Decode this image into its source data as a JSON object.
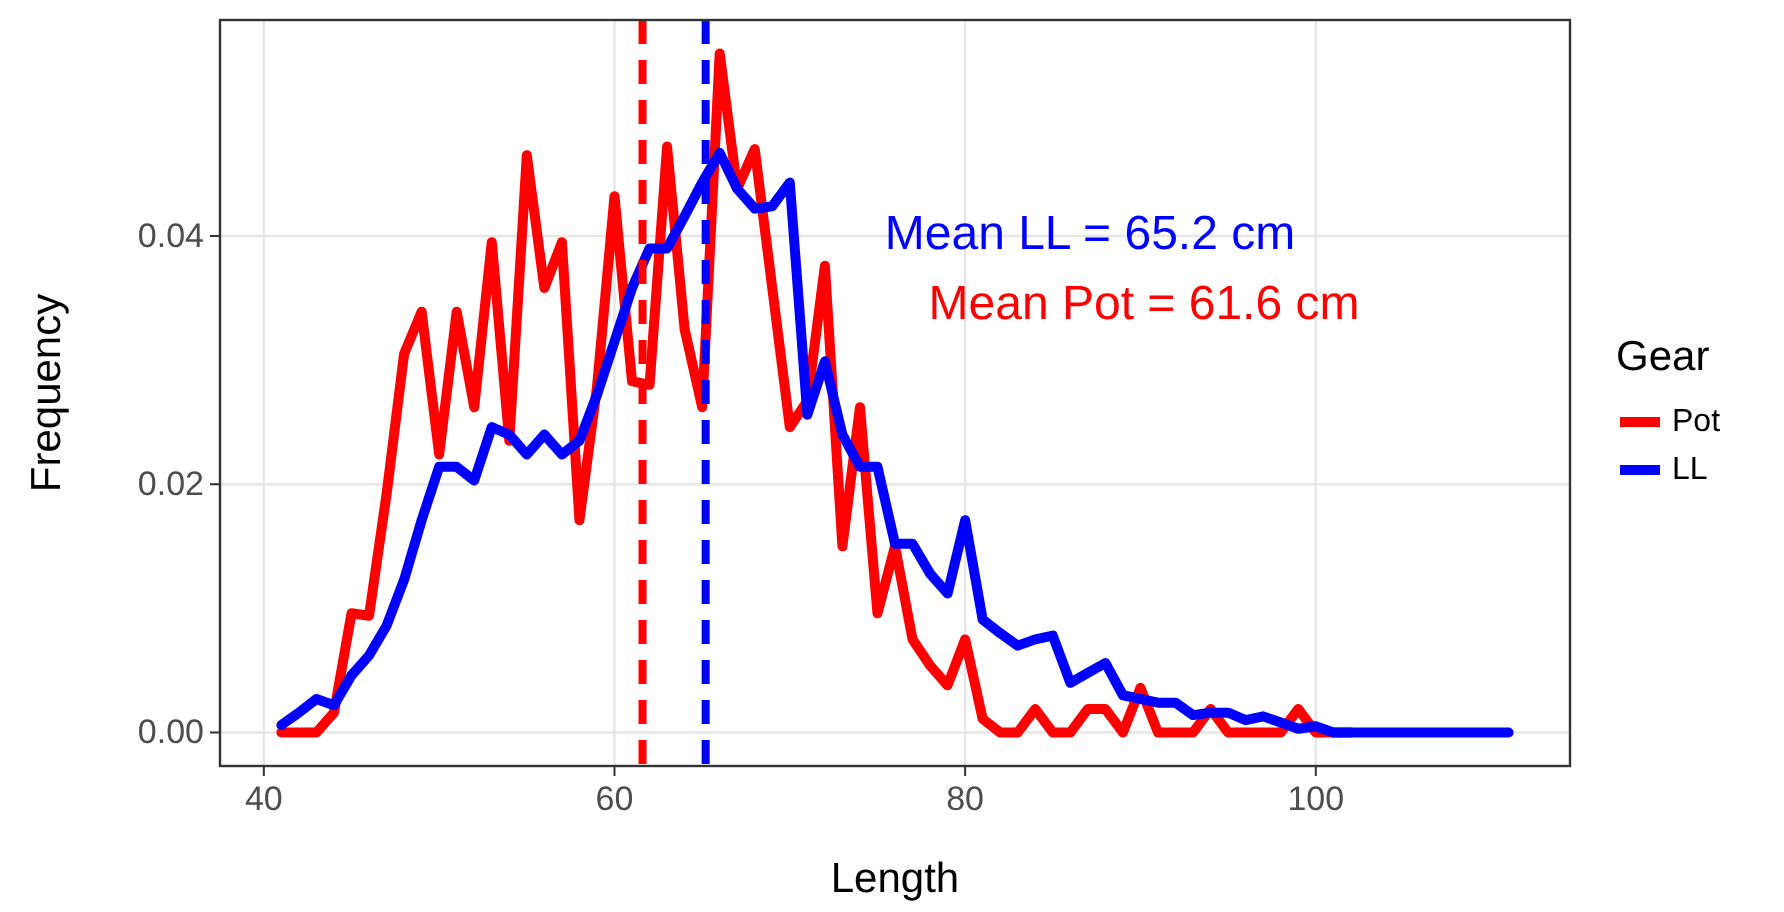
{
  "chart_data": {
    "type": "line",
    "xlabel": "Length",
    "ylabel": "Frequency",
    "legend_title": "Gear",
    "legend": "right",
    "grid": true,
    "line_style": "solid",
    "x": [
      41,
      42,
      43,
      44,
      45,
      46,
      47,
      48,
      49,
      50,
      51,
      52,
      53,
      54,
      55,
      56,
      57,
      58,
      59,
      60,
      61,
      62,
      63,
      64,
      65,
      66,
      67,
      68,
      69,
      70,
      71,
      72,
      73,
      74,
      75,
      76,
      77,
      78,
      79,
      80,
      81,
      82,
      83,
      84,
      85,
      86,
      87,
      88,
      89,
      90,
      91,
      92,
      93,
      94,
      95,
      96,
      97,
      98,
      99,
      100,
      101,
      102,
      103,
      104,
      105,
      106,
      107,
      108,
      109,
      110,
      111
    ],
    "series": [
      {
        "name": "Pot",
        "color": "#ff0000",
        "values": [
          0,
          0,
          0,
          0.0016,
          0.0096,
          0.0094,
          0.0192,
          0.0305,
          0.0339,
          0.0224,
          0.0339,
          0.0262,
          0.0395,
          0.0235,
          0.0465,
          0.0358,
          0.0395,
          0.0171,
          0.0278,
          0.0432,
          0.0283,
          0.028,
          0.0472,
          0.0325,
          0.0262,
          0.0547,
          0.0438,
          0.047,
          0.0358,
          0.0246,
          0.0267,
          0.0376,
          0.015,
          0.0262,
          0.0096,
          0.015,
          0.0075,
          0.0054,
          0.0038,
          0.0075,
          0.0011,
          0,
          0,
          0.0019,
          0,
          0,
          0.0019,
          0.0019,
          0,
          0.0036,
          0,
          0,
          0,
          0.0019,
          0,
          0,
          0,
          0,
          0.0019,
          0,
          0,
          0,
          null,
          null,
          null,
          null,
          null,
          null,
          null,
          null,
          null
        ]
      },
      {
        "name": "LL",
        "color": "#0000ff",
        "values": [
          0.0006,
          0.0016,
          0.0027,
          0.0022,
          0.0046,
          0.0062,
          0.0086,
          0.0123,
          0.0171,
          0.0214,
          0.0214,
          0.0203,
          0.0246,
          0.024,
          0.0224,
          0.024,
          0.0224,
          0.0235,
          0.0272,
          0.0315,
          0.0358,
          0.039,
          0.039,
          0.0416,
          0.0443,
          0.0467,
          0.0438,
          0.0422,
          0.0424,
          0.0443,
          0.0256,
          0.0299,
          0.024,
          0.0214,
          0.0214,
          0.0152,
          0.0152,
          0.0128,
          0.0112,
          0.0171,
          0.0091,
          0.008,
          0.007,
          0.0075,
          0.0078,
          0.004,
          0.0048,
          0.0056,
          0.003,
          0.0027,
          0.0024,
          0.0024,
          0.0014,
          0.0016,
          0.0016,
          0.001,
          0.0013,
          0.0008,
          0.0003,
          0.0005,
          0,
          0,
          0,
          0,
          0,
          0,
          0,
          0,
          0,
          0,
          0
        ]
      }
    ],
    "xlim": [
      37.5,
      114.5
    ],
    "xticks": [
      40,
      60,
      80,
      100
    ],
    "ylim": [
      -0.0027,
      0.0574
    ],
    "yticks": [
      {
        "value": 0,
        "label": "0.00"
      },
      {
        "value": 0.02,
        "label": "0.02"
      },
      {
        "value": 0.04,
        "label": "0.04"
      }
    ],
    "ref_lines": [
      {
        "axis": "x",
        "value": 61.6,
        "color": "#ff0000",
        "line_style": "dashed",
        "label": "Mean Pot = 61.6 cm"
      },
      {
        "axis": "x",
        "value": 65.2,
        "color": "#0000ff",
        "line_style": "dashed",
        "label": "Mean LL = 65.2 cm"
      }
    ]
  }
}
